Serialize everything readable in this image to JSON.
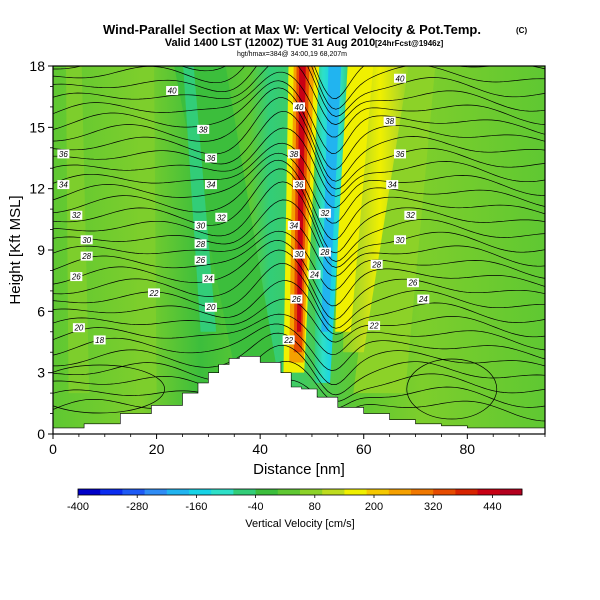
{
  "header": {
    "title": "Wind-Parallel Section at Max W: Vertical Velocity & Pot.Temp.",
    "copyright": "(C)",
    "subtitle": "Valid 1400 LST (1200Z) TUE 31 Aug 2010",
    "forecast_tag": "[24hrFcst@1946z]",
    "subsubtitle": "hgt/hmax=384@ 34:00,19 68,207m"
  },
  "colorbar": {
    "label": "Vertical Velocity [cm/s]",
    "ticks": [
      "-400",
      "-280",
      "-160",
      "-40",
      "80",
      "200",
      "320",
      "440"
    ],
    "min": -400,
    "max": 500,
    "colors": [
      "#0000c8",
      "#0a2cf0",
      "#1e5af5",
      "#2f8cf5",
      "#21b4f0",
      "#17d3e6",
      "#2ee0c8",
      "#32cd78",
      "#3cbe3c",
      "#5fc832",
      "#8cd228",
      "#bedc1e",
      "#f0f000",
      "#f5c800",
      "#f5a000",
      "#f07800",
      "#e64b00",
      "#d72300",
      "#c80014",
      "#b4001e"
    ]
  },
  "chart_data": {
    "type": "heatmap",
    "title": "Wind-Parallel Section at Max W: Vertical Velocity & Pot.Temp.",
    "xlabel": "Distance [nm]",
    "ylabel": "Height [Kft MSL]",
    "xlim": [
      0,
      95
    ],
    "ylim": [
      0,
      18
    ],
    "xticks": [
      "0",
      "20",
      "40",
      "60",
      "80"
    ],
    "yticks": [
      "0",
      "3",
      "6",
      "9",
      "12",
      "15",
      "18"
    ],
    "terrain": {
      "x": [
        0,
        6,
        6,
        13,
        13,
        19,
        19,
        25,
        25,
        28,
        28,
        30,
        30,
        32,
        32,
        34,
        34,
        36,
        36,
        40,
        40,
        44,
        44,
        46,
        46,
        48,
        48,
        51,
        51,
        55,
        55,
        60,
        60,
        65,
        65,
        70,
        70,
        75,
        75,
        80,
        80,
        88,
        88,
        95
      ],
      "y": [
        0.3,
        0.3,
        0.5,
        0.5,
        1.0,
        1.0,
        1.4,
        1.4,
        2.0,
        2.0,
        2.5,
        2.5,
        3.0,
        3.0,
        3.4,
        3.4,
        3.7,
        3.7,
        3.8,
        3.8,
        3.5,
        3.5,
        3.0,
        3.0,
        2.3,
        2.3,
        2.2,
        2.2,
        1.8,
        1.8,
        1.3,
        1.3,
        1.0,
        1.0,
        0.7,
        0.7,
        0.5,
        0.5,
        0.4,
        0.4,
        0.3,
        0.3,
        0.3,
        0.3
      ]
    },
    "theta_labels": [
      {
        "x": 23,
        "y": 16.8,
        "text": "40"
      },
      {
        "x": 29,
        "y": 14.9,
        "text": "38"
      },
      {
        "x": 30.5,
        "y": 13.5,
        "text": "36"
      },
      {
        "x": 30.5,
        "y": 12.2,
        "text": "34"
      },
      {
        "x": 32.5,
        "y": 10.6,
        "text": "32"
      },
      {
        "x": 28.5,
        "y": 10.2,
        "text": "30"
      },
      {
        "x": 28.5,
        "y": 9.3,
        "text": "28"
      },
      {
        "x": 28.5,
        "y": 8.5,
        "text": "26"
      },
      {
        "x": 30,
        "y": 7.6,
        "text": "24"
      },
      {
        "x": 19.5,
        "y": 6.9,
        "text": "22"
      },
      {
        "x": 30.5,
        "y": 6.2,
        "text": "20"
      },
      {
        "x": 2,
        "y": 13.7,
        "text": "36"
      },
      {
        "x": 2,
        "y": 12.2,
        "text": "34"
      },
      {
        "x": 4.5,
        "y": 10.7,
        "text": "32"
      },
      {
        "x": 6.5,
        "y": 9.5,
        "text": "30"
      },
      {
        "x": 6.5,
        "y": 8.7,
        "text": "28"
      },
      {
        "x": 4.5,
        "y": 7.7,
        "text": "26"
      },
      {
        "x": 5,
        "y": 5.2,
        "text": "20"
      },
      {
        "x": 9,
        "y": 4.6,
        "text": "18"
      },
      {
        "x": 47.5,
        "y": 16.0,
        "text": "40"
      },
      {
        "x": 46.5,
        "y": 13.7,
        "text": "38"
      },
      {
        "x": 47.5,
        "y": 12.2,
        "text": "36"
      },
      {
        "x": 46.5,
        "y": 10.2,
        "text": "34"
      },
      {
        "x": 47.5,
        "y": 8.8,
        "text": "30"
      },
      {
        "x": 50.5,
        "y": 7.8,
        "text": "24"
      },
      {
        "x": 47,
        "y": 6.6,
        "text": "26"
      },
      {
        "x": 45.5,
        "y": 4.6,
        "text": "22"
      },
      {
        "x": 52.5,
        "y": 10.8,
        "text": "32"
      },
      {
        "x": 52.5,
        "y": 8.9,
        "text": "28"
      },
      {
        "x": 67,
        "y": 17.4,
        "text": "40"
      },
      {
        "x": 65,
        "y": 15.3,
        "text": "38"
      },
      {
        "x": 67,
        "y": 13.7,
        "text": "36"
      },
      {
        "x": 65.5,
        "y": 12.2,
        "text": "34"
      },
      {
        "x": 69,
        "y": 10.7,
        "text": "32"
      },
      {
        "x": 67,
        "y": 9.5,
        "text": "30"
      },
      {
        "x": 62.5,
        "y": 8.3,
        "text": "28"
      },
      {
        "x": 69.5,
        "y": 7.4,
        "text": "26"
      },
      {
        "x": 71.5,
        "y": 6.6,
        "text": "24"
      },
      {
        "x": 62,
        "y": 5.3,
        "text": "22"
      }
    ]
  }
}
